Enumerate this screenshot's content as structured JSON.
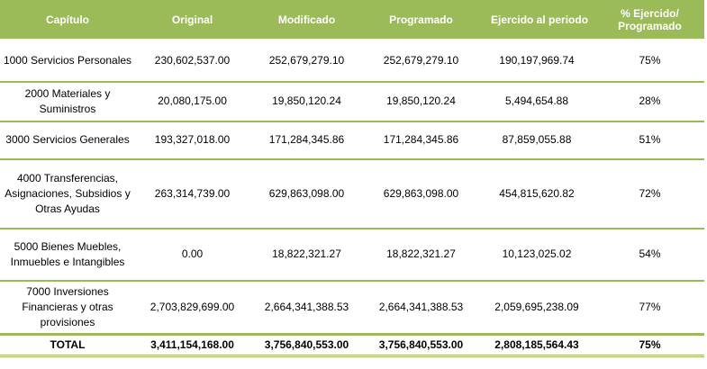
{
  "headers": {
    "capitulo": "Capítulo",
    "original": "Original",
    "modificado": "Modificado",
    "programado": "Programado",
    "ejercido": "Ejercido al periodo",
    "porcentaje": "% Ejercido/ Programado"
  },
  "rows": [
    {
      "capitulo": "1000 Servicios Personales",
      "original": "230,602,537.00",
      "modificado": "252,679,279.10",
      "programado": "252,679,279.10",
      "ejercido": "190,197,969.74",
      "porcentaje": "75%"
    },
    {
      "capitulo": "2000 Materiales y Suministros",
      "original": "20,080,175.00",
      "modificado": "19,850,120.24",
      "programado": "19,850,120.24",
      "ejercido": "5,494,654.88",
      "porcentaje": "28%"
    },
    {
      "capitulo": "3000 Servicios Generales",
      "original": "193,327,018.00",
      "modificado": "171,284,345.86",
      "programado": "171,284,345.86",
      "ejercido": "87,859,055.88",
      "porcentaje": "51%"
    },
    {
      "capitulo": "4000 Transferencias, Asignaciones, Subsidios y Otras Ayudas",
      "original": "263,314,739.00",
      "modificado": "629,863,098.00",
      "programado": "629,863,098.00",
      "ejercido": "454,815,620.82",
      "porcentaje": "72%"
    },
    {
      "capitulo": "5000 Bienes Muebles, Inmuebles e Intangibles",
      "original": "0.00",
      "modificado": "18,822,321.27",
      "programado": "18,822,321.27",
      "ejercido": "10,123,025.02",
      "porcentaje": "54%"
    },
    {
      "capitulo": "7000 Inversiones Financieras y otras provisiones",
      "original": "2,703,829,699.00",
      "modificado": "2,664,341,388.53",
      "programado": "2,664,341,388.53",
      "ejercido": "2,059,695,238.09",
      "porcentaje": "77%"
    }
  ],
  "total": {
    "capitulo": "TOTAL",
    "original": "3,411,154,168.00",
    "modificado": "3,756,840,553.00",
    "programado": "3,756,840,553.00",
    "ejercido": "2,808,185,564.43",
    "porcentaje": "75%"
  },
  "colors": {
    "header_bg": "#9bbb59",
    "header_text": "#ffffff",
    "rule": "#9bbb59"
  }
}
